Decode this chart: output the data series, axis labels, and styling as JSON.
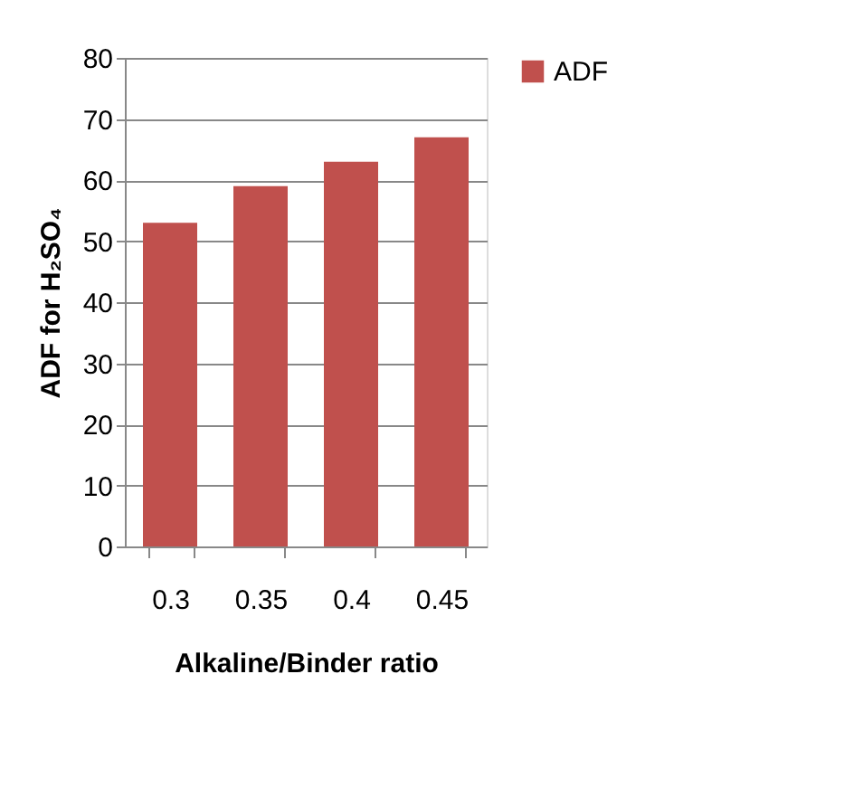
{
  "chart_data": {
    "type": "bar",
    "xlabel": "Alkaline/Binder ratio",
    "ylabel": "ADF for H₂SO₄",
    "categories": [
      "0.3",
      "0.35",
      "0.4",
      "0.45"
    ],
    "series": [
      {
        "name": "ADF",
        "color": "#c0504d",
        "values": [
          53,
          59,
          63,
          67
        ]
      }
    ],
    "ylim": [
      0,
      80
    ],
    "yticks": [
      0,
      10,
      20,
      30,
      40,
      50,
      60,
      70,
      80
    ],
    "grid": "y",
    "legend": "right"
  }
}
